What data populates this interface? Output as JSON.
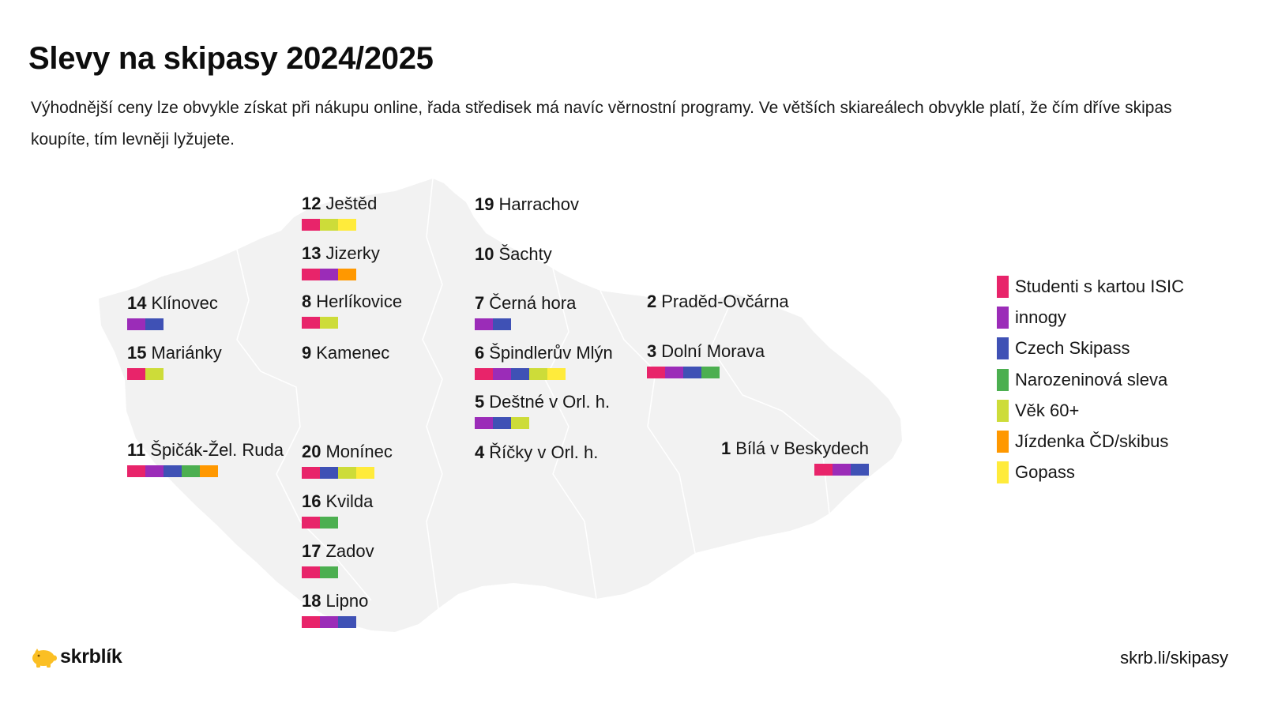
{
  "title": "Slevy na skipasy 2024/2025",
  "subtitle": "Výhodnější ceny lze obvykle získat při nákupu online, řada středisek má navíc věrnostní programy. Ve větších skiareálech obvykle platí, že čím dříve skipas koupíte, tím levněji lyžujete.",
  "legend": [
    {
      "key": "isic",
      "label": "Studenti s kartou ISIC",
      "color": "#e8246a"
    },
    {
      "key": "innogy",
      "label": "innogy",
      "color": "#9b2cb8"
    },
    {
      "key": "czech",
      "label": "Czech Skipass",
      "color": "#3f51b5"
    },
    {
      "key": "birthday",
      "label": "Narozeninová sleva",
      "color": "#4caf50"
    },
    {
      "key": "senior",
      "label": "Věk 60+",
      "color": "#cddc39"
    },
    {
      "key": "cd",
      "label": "Jízdenka ČD/skibus",
      "color": "#ff9800"
    },
    {
      "key": "gopass",
      "label": "Gopass",
      "color": "#ffeb3b"
    }
  ],
  "resorts": [
    {
      "num": "12",
      "name": "Ještěd",
      "discounts": [
        "isic",
        "senior",
        "gopass"
      ]
    },
    {
      "num": "13",
      "name": "Jizerky",
      "discounts": [
        "isic",
        "innogy",
        "cd"
      ]
    },
    {
      "num": "8",
      "name": "Herlíkovice",
      "discounts": [
        "isic",
        "senior"
      ]
    },
    {
      "num": "9",
      "name": "Kamenec",
      "discounts": []
    },
    {
      "num": "19",
      "name": "Harrachov",
      "discounts": []
    },
    {
      "num": "10",
      "name": "Šachty",
      "discounts": []
    },
    {
      "num": "7",
      "name": "Černá hora",
      "discounts": [
        "innogy",
        "czech"
      ]
    },
    {
      "num": "6",
      "name": "Špindlerův Mlýn",
      "discounts": [
        "isic",
        "innogy",
        "czech",
        "senior",
        "gopass"
      ]
    },
    {
      "num": "5",
      "name": "Deštné v Orl. h.",
      "discounts": [
        "innogy",
        "czech",
        "senior"
      ]
    },
    {
      "num": "4",
      "name": "Říčky v Orl. h.",
      "discounts": []
    },
    {
      "num": "14",
      "name": "Klínovec",
      "discounts": [
        "innogy",
        "czech"
      ]
    },
    {
      "num": "15",
      "name": "Mariánky",
      "discounts": [
        "isic",
        "senior"
      ]
    },
    {
      "num": "11",
      "name": "Špičák-Žel. Ruda",
      "discounts": [
        "isic",
        "innogy",
        "czech",
        "birthday",
        "cd"
      ]
    },
    {
      "num": "20",
      "name": "Monínec",
      "discounts": [
        "isic",
        "czech",
        "senior",
        "gopass"
      ]
    },
    {
      "num": "16",
      "name": "Kvilda",
      "discounts": [
        "isic",
        "birthday"
      ]
    },
    {
      "num": "17",
      "name": "Zadov",
      "discounts": [
        "isic",
        "birthday"
      ]
    },
    {
      "num": "18",
      "name": "Lipno",
      "discounts": [
        "isic",
        "innogy",
        "czech"
      ]
    },
    {
      "num": "2",
      "name": "Praděd-Ovčárna",
      "discounts": []
    },
    {
      "num": "3",
      "name": "Dolní Morava",
      "discounts": [
        "isic",
        "innogy",
        "czech",
        "birthday"
      ]
    },
    {
      "num": "1",
      "name": "Bílá v Beskydech",
      "discounts": [
        "isic",
        "innogy",
        "czech"
      ]
    }
  ],
  "footer": {
    "logo_text": "skrblík",
    "logo_icon": "piggy-bank-icon",
    "url": "skrb.li/skipasy"
  }
}
